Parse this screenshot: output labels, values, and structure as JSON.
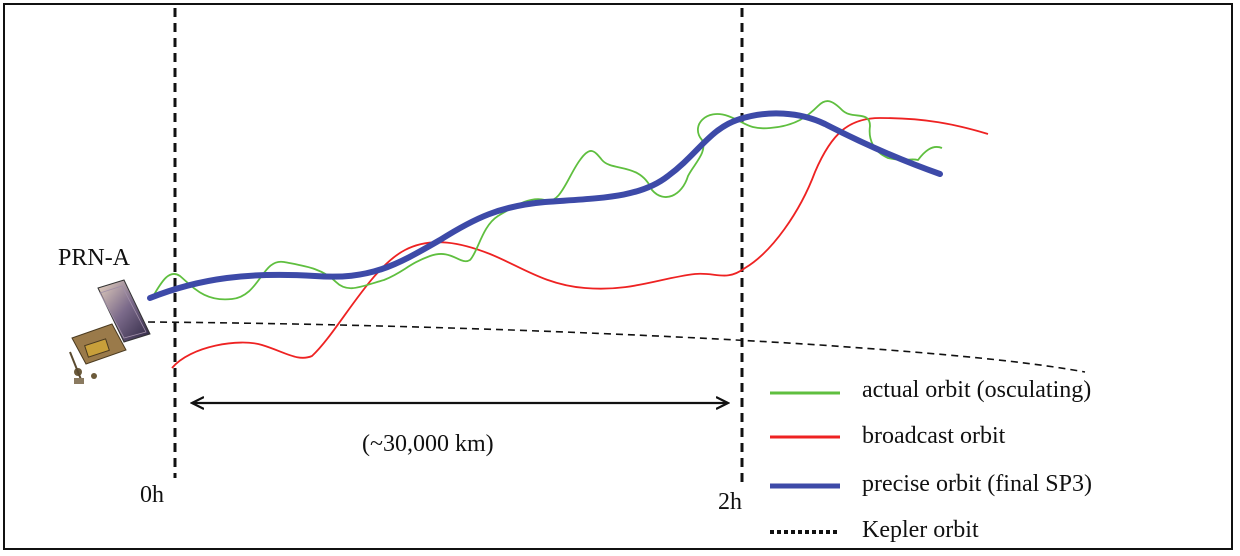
{
  "satellite": {
    "label": "PRN-A",
    "icon": "satellite-icon"
  },
  "time_markers": {
    "start": "0h",
    "end": "2h"
  },
  "distance": {
    "label": "(~30,000 km)"
  },
  "legend": [
    {
      "label": "actual orbit (osculating)",
      "color": "#5fbf3f",
      "style": "solid"
    },
    {
      "label": "broadcast orbit",
      "color": "#ee2222",
      "style": "solid"
    },
    {
      "label": "precise orbit (final SP3)",
      "color": "#3d4aa8",
      "style": "solid-thick"
    },
    {
      "label": "Kepler orbit",
      "color": "#111111",
      "style": "dotted"
    }
  ],
  "colors": {
    "actual": "#5fbf3f",
    "broadcast": "#ee2222",
    "precise": "#3d4aa8",
    "kepler": "#111111"
  }
}
